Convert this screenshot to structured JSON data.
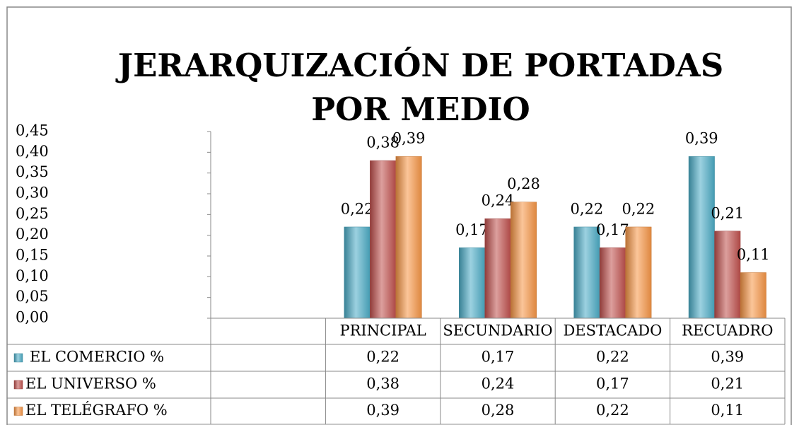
{
  "chart_data": {
    "type": "bar",
    "title": "JERARQUIZACIÓN DE PORTADAS POR MEDIO",
    "categories": [
      null,
      "PRINCIPAL",
      "SECUNDARIO",
      "DESTACADO",
      "RECUADRO"
    ],
    "series": [
      {
        "name": "EL COMERCIO %",
        "color": "#4bacc6",
        "values": [
          null,
          0.22,
          0.17,
          0.22,
          0.39
        ],
        "value_labels": [
          null,
          "0,22",
          "0,17",
          "0,22",
          "0,39"
        ]
      },
      {
        "name": "EL UNIVERSO %",
        "color": "#c0504d",
        "values": [
          null,
          0.38,
          0.24,
          0.17,
          0.21
        ],
        "value_labels": [
          null,
          "0,38",
          "0,24",
          "0,17",
          "0,21"
        ]
      },
      {
        "name": "EL TELÉGRAFO %",
        "color": "#f79646",
        "values": [
          null,
          0.39,
          0.28,
          0.22,
          0.11
        ],
        "value_labels": [
          null,
          "0,39",
          "0,28",
          "0,22",
          "0,11"
        ]
      }
    ],
    "ylim": [
      0,
      0.45
    ],
    "yticks": [
      {
        "value": 0,
        "label": "0,00"
      },
      {
        "value": 0.05,
        "label": "0,05"
      },
      {
        "value": 0.1,
        "label": "0,10"
      },
      {
        "value": 0.15,
        "label": "0,15"
      },
      {
        "value": 0.2,
        "label": "0,20"
      },
      {
        "value": 0.25,
        "label": "0,25"
      },
      {
        "value": 0.3,
        "label": "0,30"
      },
      {
        "value": 0.35,
        "label": "0,35"
      },
      {
        "value": 0.4,
        "label": "0,40"
      },
      {
        "value": 0.45,
        "label": "0,45"
      }
    ],
    "grid": false,
    "data_table": true
  }
}
